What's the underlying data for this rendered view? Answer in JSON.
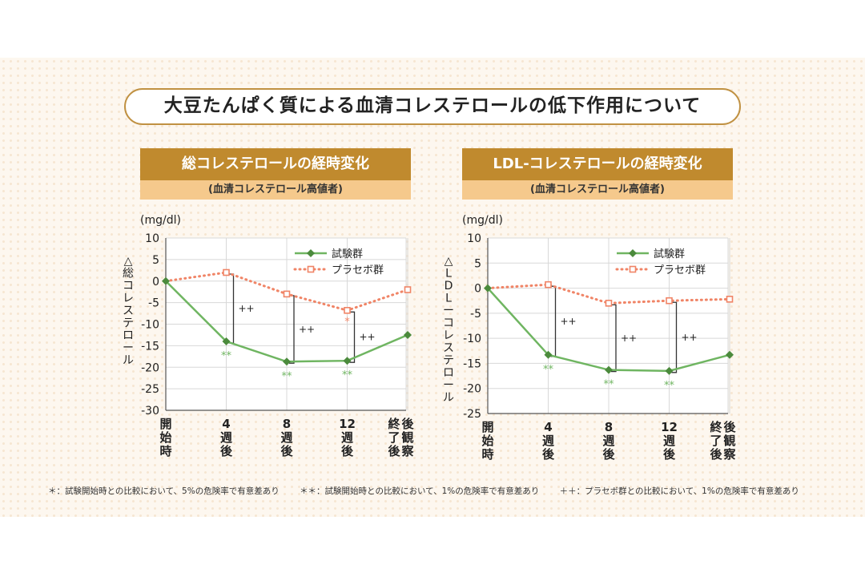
{
  "title": "大豆たんぱく質による血清コレステロールの低下作用について",
  "colors": {
    "trial": "#6fb561",
    "trial_marker": "#4b8a3c",
    "placebo": "#f08466",
    "gold": "#c08a2e",
    "sub_bg": "#f5c98c"
  },
  "chart_data": [
    {
      "type": "line",
      "header": "総コレステロールの経時変化",
      "subheader": "(血清コレステロール高値者)",
      "unit": "(mg/dl)",
      "ylabel": [
        "△",
        "総",
        "コ",
        "レ",
        "ス",
        "テ",
        "ロ",
        "ー",
        "ル"
      ],
      "ylim": [
        -30,
        10
      ],
      "yticks": [
        10,
        5,
        0,
        -5,
        -10,
        -15,
        -20,
        -25,
        -30
      ],
      "categories": [
        [
          "開",
          "始",
          "時"
        ],
        [
          "4",
          "週",
          "後"
        ],
        [
          "8",
          "週",
          "後"
        ],
        [
          "12",
          "週",
          "後"
        ],
        [
          "終",
          "了",
          "後"
        ],
        [
          "後",
          "観",
          "察"
        ]
      ],
      "legend": [
        "試験群",
        "プラセボ群"
      ],
      "series": [
        {
          "name": "試験群",
          "x": [
            0,
            1,
            2,
            3,
            4
          ],
          "values": [
            0,
            -14,
            -18.7,
            -18.5,
            -12.5
          ]
        },
        {
          "name": "プラセボ群",
          "x": [
            0,
            1,
            2,
            3,
            4
          ],
          "values": [
            0,
            2,
            -3,
            -6.8,
            -2
          ]
        }
      ],
      "trial_marks": [
        {
          "x": 1,
          "label": "**"
        },
        {
          "x": 2,
          "label": "**"
        },
        {
          "x": 3,
          "label": "**"
        }
      ],
      "placebo_marks": [
        {
          "x": 3,
          "label": "*"
        }
      ],
      "brackets": [
        {
          "x": 1,
          "label": "++"
        },
        {
          "x": 2,
          "label": "++"
        },
        {
          "x": 3,
          "label": "++"
        }
      ]
    },
    {
      "type": "line",
      "header": "LDL-コレステロールの経時変化",
      "subheader": "(血清コレステロール高値者)",
      "unit": "(mg/dl)",
      "ylabel": [
        "△",
        "L",
        "D",
        "L",
        "ー",
        "コ",
        "レ",
        "ス",
        "テ",
        "ロ",
        "ー",
        "ル"
      ],
      "ylim": [
        -25,
        10
      ],
      "yticks": [
        10,
        5,
        0,
        -5,
        -10,
        -15,
        -20,
        -25
      ],
      "categories": [
        [
          "開",
          "始",
          "時"
        ],
        [
          "4",
          "週",
          "後"
        ],
        [
          "8",
          "週",
          "後"
        ],
        [
          "12",
          "週",
          "後"
        ],
        [
          "終",
          "了",
          "後"
        ],
        [
          "後",
          "観",
          "察"
        ]
      ],
      "legend": [
        "試験群",
        "プラセボ群"
      ],
      "series": [
        {
          "name": "試験群",
          "x": [
            0,
            1,
            2,
            3,
            4
          ],
          "values": [
            0,
            -13.3,
            -16.3,
            -16.5,
            -13.3
          ]
        },
        {
          "name": "プラセボ群",
          "x": [
            0,
            1,
            2,
            3,
            4
          ],
          "values": [
            0,
            0.7,
            -3,
            -2.5,
            -2.2
          ]
        }
      ],
      "trial_marks": [
        {
          "x": 1,
          "label": "**"
        },
        {
          "x": 2,
          "label": "**"
        },
        {
          "x": 3,
          "label": "**"
        }
      ],
      "placebo_marks": [],
      "brackets": [
        {
          "x": 1,
          "label": "++"
        },
        {
          "x": 2,
          "label": "++"
        },
        {
          "x": 3,
          "label": "++"
        }
      ]
    }
  ],
  "footnotes": [
    "＊：試験開始時との比較において、5%の危険率で有意差あり",
    "＊＊：試験開始時との比較において、1%の危険率で有意差あり",
    "＋＋：プラセボ群との比較において、1%の危険率で有意差あり"
  ]
}
